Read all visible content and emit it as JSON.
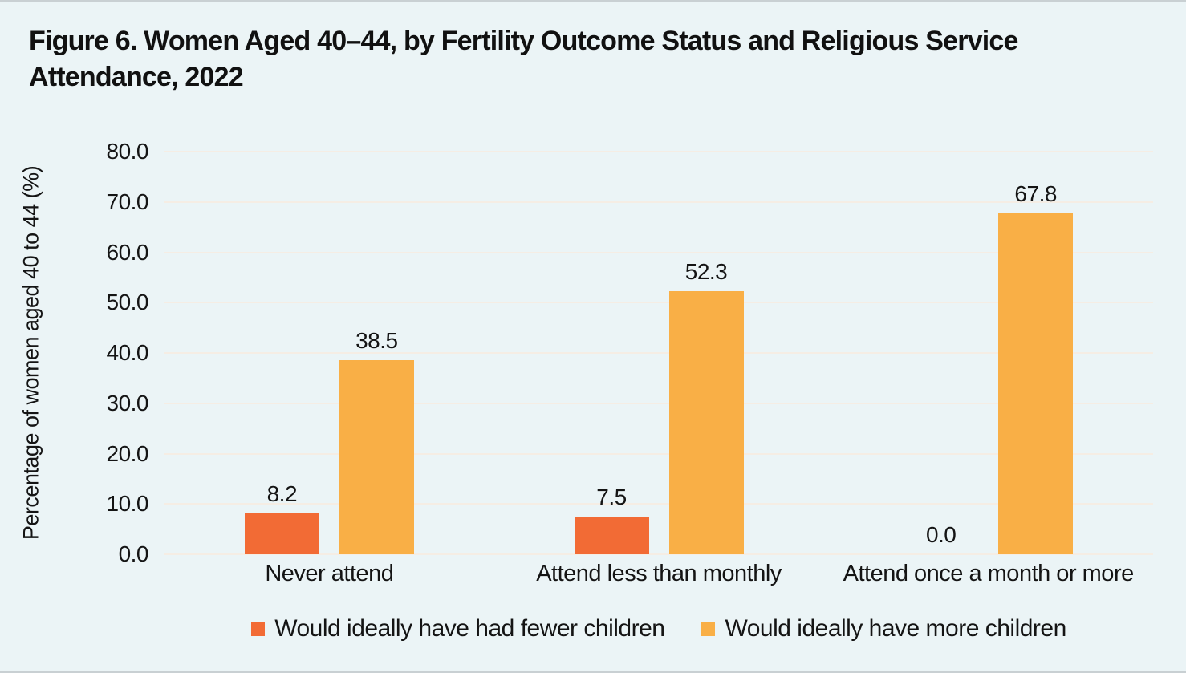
{
  "page": {
    "background": "#EBF4F6",
    "border_color": "#C9D0D3",
    "text_color": "#141414"
  },
  "title": {
    "line1": "Figure 6. Women Aged 40–44, by Fertility Outcome Status and Religious Service",
    "line2": "Attendance, 2022"
  },
  "chart_data": {
    "type": "bar",
    "title": "Figure 6. Women Aged 40–44, by Fertility Outcome Status and Religious Service Attendance, 2022",
    "categories": [
      "Never attend",
      "Attend less than monthly",
      "Attend once a month or more"
    ],
    "series": [
      {
        "name": "Would ideally have had fewer children",
        "color": "#F26B35",
        "values": [
          8.2,
          7.5,
          0.0
        ]
      },
      {
        "name": "Would ideally have more children",
        "color": "#F9AF46",
        "values": [
          38.5,
          52.3,
          67.8
        ]
      }
    ],
    "value_labels": [
      [
        "8.2",
        "7.5",
        "0.0"
      ],
      [
        "38.5",
        "52.3",
        "67.8"
      ]
    ],
    "xlabel": "",
    "ylabel": "Percentage of women aged 40 to 44 (%)",
    "ylim": [
      0,
      80
    ],
    "ytick_step": 10,
    "yticks": [
      "0.0",
      "10.0",
      "20.0",
      "30.0",
      "40.0",
      "50.0",
      "60.0",
      "70.0",
      "80.0"
    ],
    "grid": "horizontal",
    "gridline_color": "#F5EDE4",
    "legend_position": "bottom"
  }
}
